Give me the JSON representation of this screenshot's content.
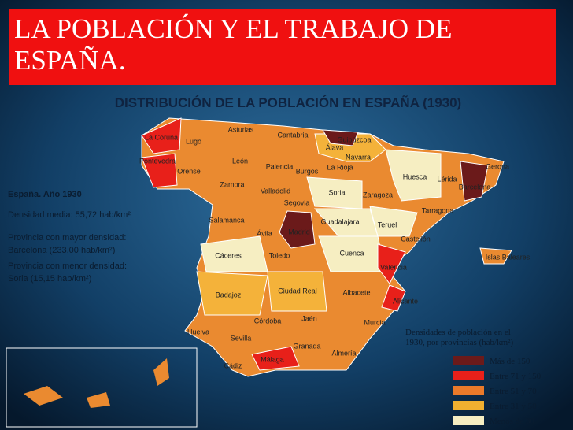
{
  "header": {
    "title": "LA POBLACIÓN Y EL TRABAJO DE ESPAÑA."
  },
  "map": {
    "title": "DISTRIBUCIÓN DE LA POBLACIÓN EN ESPAÑA (1930)",
    "info": [
      "España. Año 1930",
      "Densidad media: 55,72 hab/km²",
      "Provincia con mayor densidad:",
      "Barcelona (233,00 hab/km²)",
      "Provincia con menor densidad:",
      "Soria (15,15 hab/km²)"
    ],
    "provinces": [
      "La Coruña",
      "Lugo",
      "Asturias",
      "Cantabria",
      "Guipúzcoa",
      "Álava",
      "Navarra",
      "Pontevedra",
      "Orense",
      "León",
      "Palencia",
      "Burgos",
      "La Rioja",
      "Huesca",
      "Lérida",
      "Gerona",
      "Barcelona",
      "Zamora",
      "Valladolid",
      "Soria",
      "Zaragoza",
      "Segovia",
      "Tarragona",
      "Salamanca",
      "Ávila",
      "Madrid",
      "Guadalajara",
      "Teruel",
      "Castellón",
      "Islas Baleares",
      "Cáceres",
      "Toledo",
      "Cuenca",
      "Valencia",
      "Badajoz",
      "Ciudad Real",
      "Albacete",
      "Alicante",
      "Huelva",
      "Córdoba",
      "Jaén",
      "Murcia",
      "Sevilla",
      "Granada",
      "Almería",
      "Cádiz",
      "Málaga"
    ],
    "legend": {
      "title": [
        "Densidades de población en el",
        "1930, por provincias (hab/km²)"
      ],
      "entries": [
        "Más de 150",
        "Entre 71 y 150",
        "Entre 51 y 70",
        "Entre 31 y 50",
        "Menos de 30"
      ]
    }
  }
}
